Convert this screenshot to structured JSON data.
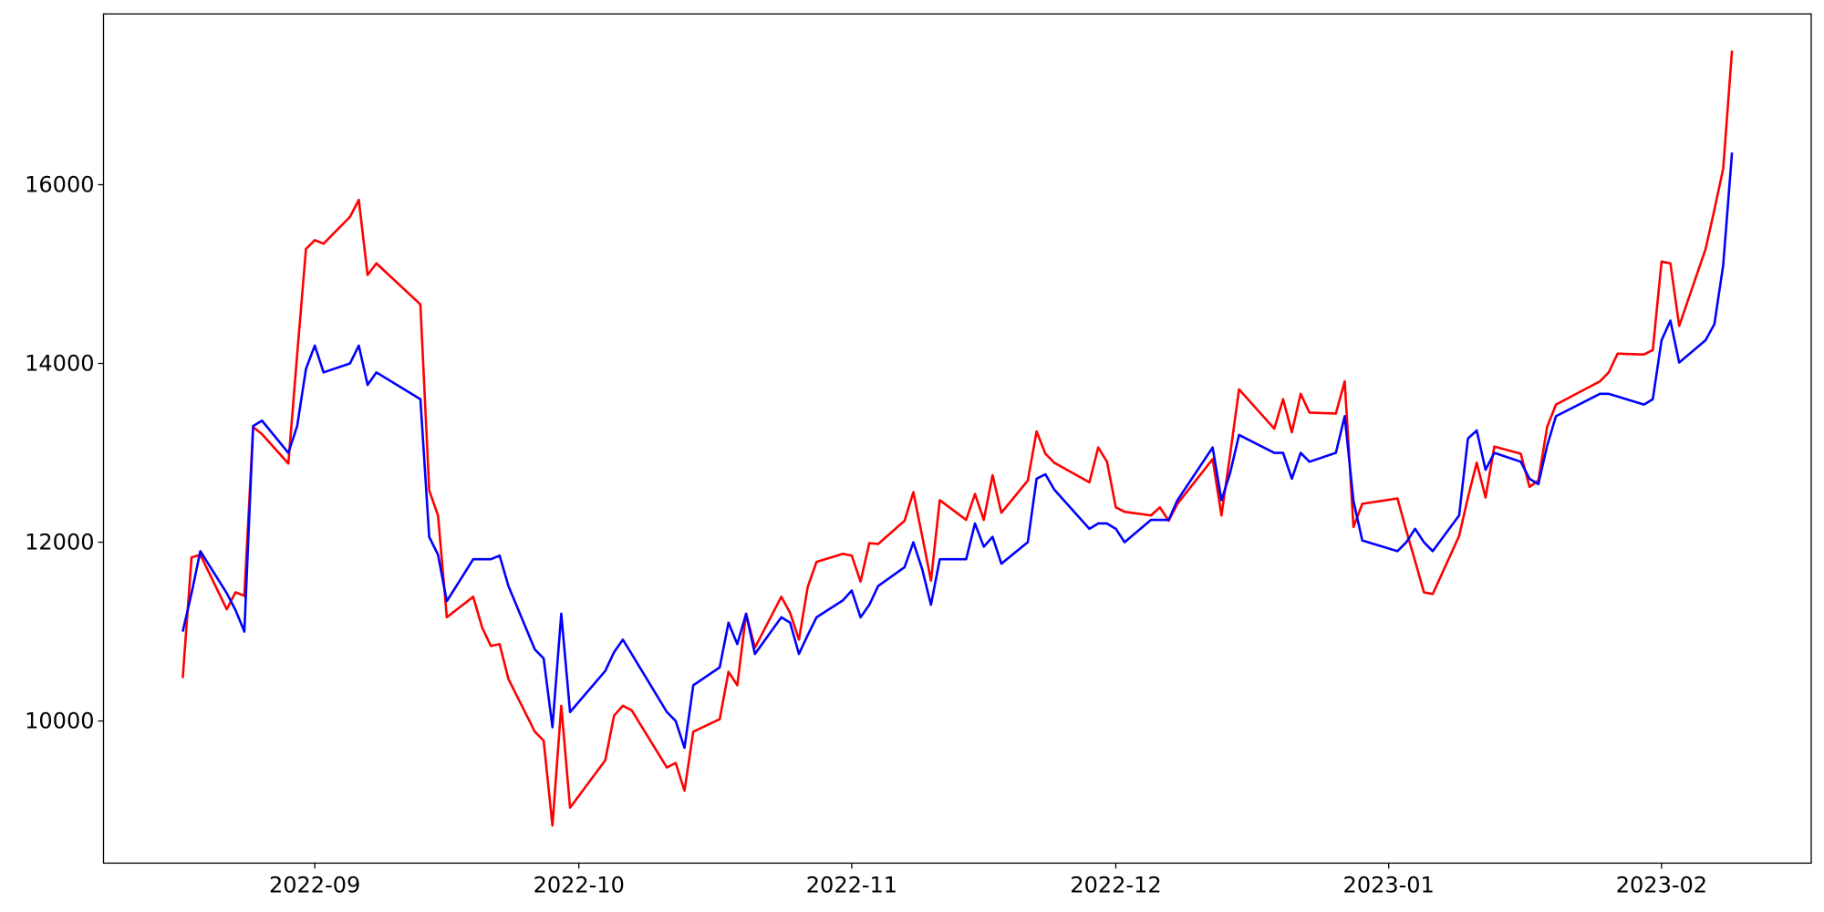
{
  "chart_data": {
    "type": "line",
    "x": [
      "2022-08-17",
      "2022-08-18",
      "2022-08-19",
      "2022-08-22",
      "2022-08-23",
      "2022-08-24",
      "2022-08-25",
      "2022-08-26",
      "2022-08-29",
      "2022-08-30",
      "2022-08-31",
      "2022-09-01",
      "2022-09-02",
      "2022-09-05",
      "2022-09-06",
      "2022-09-07",
      "2022-09-08",
      "2022-09-13",
      "2022-09-14",
      "2022-09-15",
      "2022-09-16",
      "2022-09-19",
      "2022-09-20",
      "2022-09-21",
      "2022-09-22",
      "2022-09-23",
      "2022-09-26",
      "2022-09-27",
      "2022-09-28",
      "2022-09-29",
      "2022-09-30",
      "2022-10-04",
      "2022-10-05",
      "2022-10-06",
      "2022-10-07",
      "2022-10-11",
      "2022-10-12",
      "2022-10-13",
      "2022-10-14",
      "2022-10-17",
      "2022-10-18",
      "2022-10-19",
      "2022-10-20",
      "2022-10-21",
      "2022-10-24",
      "2022-10-25",
      "2022-10-26",
      "2022-10-27",
      "2022-10-28",
      "2022-10-31",
      "2022-11-01",
      "2022-11-02",
      "2022-11-03",
      "2022-11-04",
      "2022-11-07",
      "2022-11-08",
      "2022-11-09",
      "2022-11-10",
      "2022-11-11",
      "2022-11-14",
      "2022-11-15",
      "2022-11-16",
      "2022-11-17",
      "2022-11-18",
      "2022-11-21",
      "2022-11-22",
      "2022-11-23",
      "2022-11-24",
      "2022-11-28",
      "2022-11-29",
      "2022-11-30",
      "2022-12-01",
      "2022-12-02",
      "2022-12-05",
      "2022-12-06",
      "2022-12-07",
      "2022-12-08",
      "2022-12-12",
      "2022-12-13",
      "2022-12-14",
      "2022-12-15",
      "2022-12-19",
      "2022-12-20",
      "2022-12-21",
      "2022-12-22",
      "2022-12-23",
      "2022-12-26",
      "2022-12-27",
      "2022-12-28",
      "2022-12-29",
      "2023-01-02",
      "2023-01-03",
      "2023-01-04",
      "2023-01-05",
      "2023-01-06",
      "2023-01-09",
      "2023-01-10",
      "2023-01-11",
      "2023-01-12",
      "2023-01-13",
      "2023-01-16",
      "2023-01-17",
      "2023-01-18",
      "2023-01-19",
      "2023-01-20",
      "2023-01-25",
      "2023-01-26",
      "2023-01-27",
      "2023-01-30",
      "2023-01-31",
      "2023-02-01",
      "2023-02-02",
      "2023-02-03",
      "2023-02-06",
      "2023-02-07",
      "2023-02-08",
      "2023-02-09"
    ],
    "series": [
      {
        "color": "#ff0000",
        "values": [
          10480,
          11830,
          11860,
          11250,
          11440,
          11400,
          13290,
          13210,
          12880,
          14100,
          15280,
          15380,
          15340,
          15640,
          15830,
          14990,
          15120,
          14660,
          12580,
          12300,
          11160,
          11390,
          11050,
          10840,
          10860,
          10470,
          9880,
          9780,
          8830,
          10170,
          9030,
          9560,
          10060,
          10170,
          10120,
          9480,
          9530,
          9220,
          9880,
          10020,
          10550,
          10400,
          11200,
          10820,
          11390,
          11210,
          10910,
          11500,
          11780,
          11870,
          11850,
          11560,
          11990,
          11980,
          12240,
          12560,
          12070,
          11570,
          12470,
          12250,
          12540,
          12250,
          12750,
          12330,
          12690,
          13240,
          12990,
          12890,
          12670,
          13060,
          12900,
          12390,
          12340,
          12300,
          12390,
          12240,
          12430,
          12930,
          12300,
          12990,
          13710,
          13270,
          13600,
          13230,
          13660,
          13450,
          13440,
          13800,
          12170,
          12430,
          12490,
          12130,
          11790,
          11440,
          11420,
          12070,
          12500,
          12890,
          12500,
          13070,
          12990,
          12620,
          12690,
          13290,
          13540,
          13800,
          13900,
          14110,
          14100,
          14150,
          15140,
          15120,
          14420,
          15280,
          15720,
          16180,
          17500
        ]
      },
      {
        "color": "#0000ff",
        "values": [
          11000,
          11430,
          11900,
          11430,
          11240,
          11000,
          13300,
          13360,
          13000,
          13300,
          13940,
          14200,
          13900,
          14000,
          14200,
          13760,
          13900,
          13600,
          12060,
          11860,
          11340,
          11810,
          11810,
          11810,
          11850,
          11510,
          10800,
          10700,
          9930,
          11200,
          10100,
          10560,
          10770,
          10910,
          10750,
          10100,
          10000,
          9700,
          10400,
          10600,
          11100,
          10860,
          11200,
          10750,
          11160,
          11100,
          10750,
          10960,
          11160,
          11350,
          11460,
          11160,
          11300,
          11510,
          11720,
          12000,
          11700,
          11300,
          11810,
          11810,
          12210,
          11950,
          12060,
          11760,
          12000,
          12710,
          12760,
          12590,
          12150,
          12210,
          12210,
          12150,
          12000,
          12250,
          12250,
          12250,
          12470,
          13060,
          12470,
          12780,
          13200,
          13000,
          13000,
          12710,
          13000,
          12900,
          13000,
          13410,
          12460,
          12020,
          11900,
          12000,
          12150,
          12000,
          11900,
          12300,
          13160,
          13250,
          12810,
          13000,
          12900,
          12710,
          12650,
          13080,
          13410,
          13660,
          13660,
          13630,
          13540,
          13600,
          14260,
          14480,
          14010,
          14260,
          14440,
          15100,
          16360
        ]
      }
    ],
    "xlim": [
      "2022-08-08",
      "2023-02-18"
    ],
    "xticks": [
      {
        "value": "2022-09-01",
        "label": "2022-09"
      },
      {
        "value": "2022-10-01",
        "label": "2022-10"
      },
      {
        "value": "2022-11-01",
        "label": "2022-11"
      },
      {
        "value": "2022-12-01",
        "label": "2022-12"
      },
      {
        "value": "2023-01-01",
        "label": "2023-01"
      },
      {
        "value": "2023-02-01",
        "label": "2023-02"
      }
    ],
    "ylim": [
      8410,
      17910
    ],
    "yticks": [
      10000,
      12000,
      14000,
      16000
    ],
    "grid": false
  }
}
